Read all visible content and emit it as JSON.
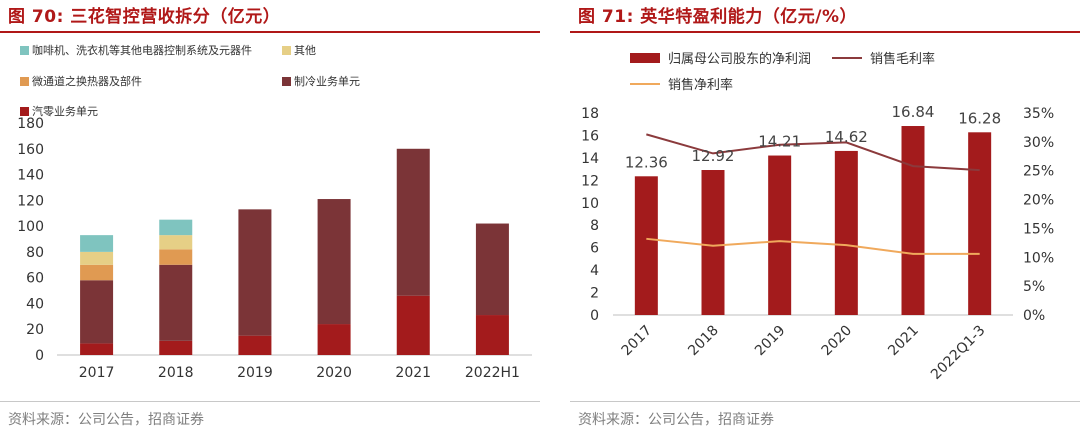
{
  "colors": {
    "accent": "#b01818",
    "bar_dark": "#7b3437",
    "bar_red": "#a31b1c",
    "bar_orange": "#e09a52",
    "bar_yellow": "#e6cf86",
    "bar_teal": "#7fc4bf",
    "line_gross": "#8b3a3c",
    "line_net": "#f0a95c",
    "axis_text": "#333333",
    "source_text": "#7f7f7f"
  },
  "left": {
    "title": "图 70:  三花智控营收拆分（亿元）",
    "source": "资料来源：公司公告，招商证券",
    "legend": [
      {
        "key": "other_appliance",
        "label": "咖啡机、洗衣机等其他电器控制系统及元器件",
        "color": "#7fc4bf"
      },
      {
        "key": "other",
        "label": "其他",
        "color": "#e6cf86"
      },
      {
        "key": "micro",
        "label": "微通道之换热器及部件",
        "color": "#e09a52"
      },
      {
        "key": "refrig",
        "label": "制冷业务单元",
        "color": "#7b3437"
      },
      {
        "key": "auto",
        "label": "汽零业务单元",
        "color": "#a31b1c"
      }
    ],
    "chart_data": {
      "type": "bar",
      "stacked": true,
      "title": "三花智控营收拆分（亿元）",
      "categories": [
        "2017",
        "2018",
        "2019",
        "2020",
        "2021",
        "2022H1"
      ],
      "series": [
        {
          "name": "汽零业务单元",
          "color": "#a31b1c",
          "values": [
            9,
            11,
            15,
            24,
            46,
            31
          ]
        },
        {
          "name": "制冷业务单元",
          "color": "#7b3437",
          "values": [
            49,
            59,
            98,
            97,
            114,
            71
          ]
        },
        {
          "name": "微通道之换热器及部件",
          "color": "#e09a52",
          "values": [
            12,
            12,
            0,
            0,
            0,
            0
          ]
        },
        {
          "name": "其他",
          "color": "#e6cf86",
          "values": [
            10,
            11,
            0,
            0,
            0,
            0
          ]
        },
        {
          "name": "咖啡机、洗衣机等其他电器控制系统及元器件",
          "color": "#7fc4bf",
          "values": [
            13,
            12,
            0,
            0,
            0,
            0
          ]
        }
      ],
      "ylim": [
        0,
        180
      ],
      "yticks": [
        0,
        20,
        40,
        60,
        80,
        100,
        120,
        140,
        160,
        180
      ]
    }
  },
  "right": {
    "title": "图 71:  英华特盈利能力（亿元/%）",
    "source": "资料来源：公司公告，招商证券",
    "legend": {
      "profit": "归属母公司股东的净利润",
      "gross": "销售毛利率",
      "net": "销售净利率"
    },
    "chart_data": {
      "type": "bar+line",
      "title": "英华特盈利能力（亿元/%）",
      "categories": [
        "2017",
        "2018",
        "2019",
        "2020",
        "2021",
        "2022Q1-3"
      ],
      "bars": {
        "name": "归属母公司股东的净利润",
        "color": "#a31b1c",
        "values": [
          12.36,
          12.92,
          14.21,
          14.62,
          16.84,
          16.28
        ]
      },
      "value_labels": [
        "12.36",
        "12.92",
        "14.21",
        "14.62",
        "16.84",
        "16.28"
      ],
      "lines": [
        {
          "name": "销售毛利率",
          "color": "#8b3a3c",
          "values": [
            31.3,
            28.0,
            29.5,
            29.9,
            25.8,
            25.1
          ]
        },
        {
          "name": "销售净利率",
          "color": "#f0a95c",
          "values": [
            13.2,
            12.0,
            12.8,
            12.1,
            10.6,
            10.6
          ]
        }
      ],
      "y_left": {
        "lim": [
          0,
          18
        ],
        "ticks": [
          0,
          2,
          4,
          6,
          8,
          10,
          12,
          14,
          16,
          18
        ]
      },
      "y_right": {
        "lim": [
          0,
          35
        ],
        "ticks": [
          "0%",
          "5%",
          "10%",
          "15%",
          "20%",
          "25%",
          "30%",
          "35%"
        ],
        "tick_values": [
          0,
          5,
          10,
          15,
          20,
          25,
          30,
          35
        ]
      }
    }
  }
}
